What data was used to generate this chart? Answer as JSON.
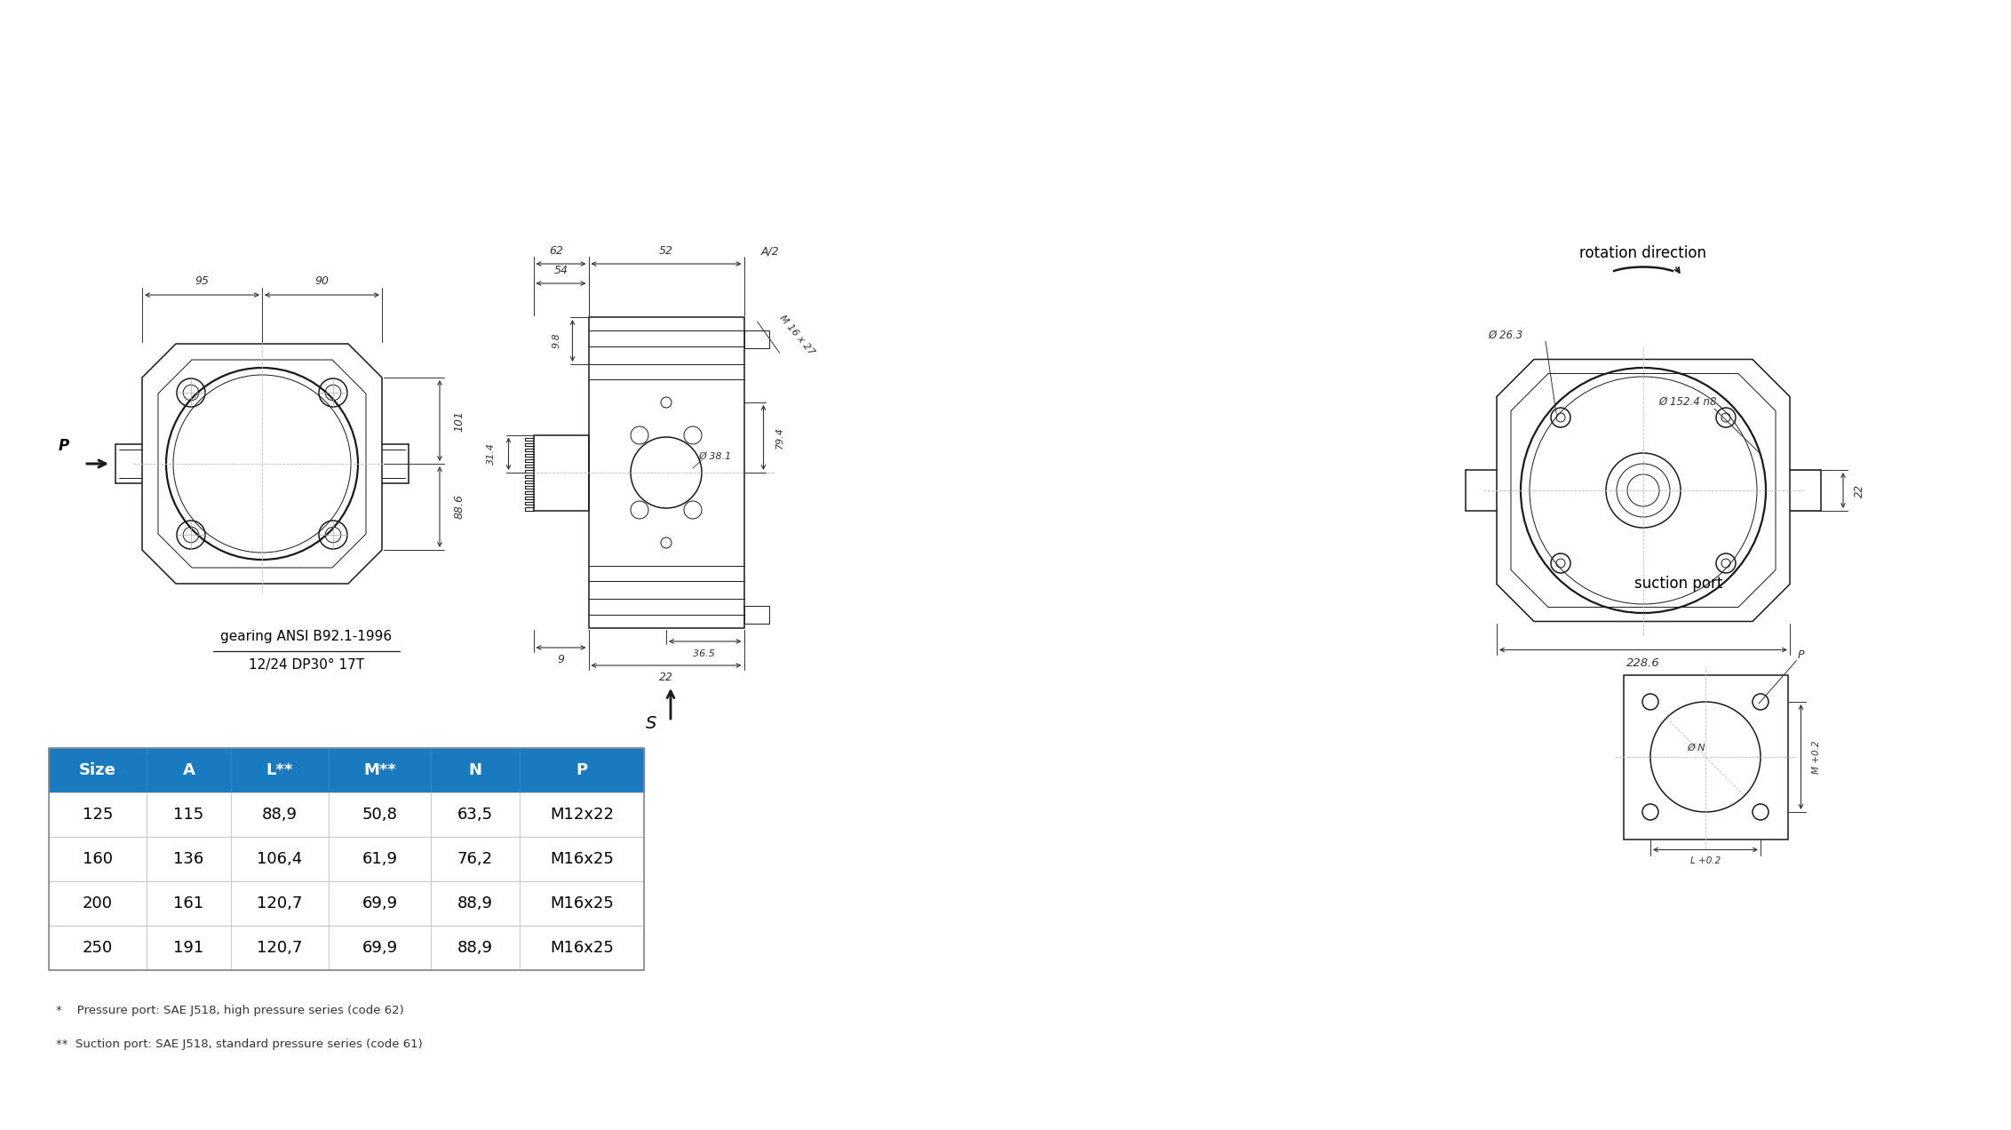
{
  "bg_color": "#ffffff",
  "line_color": "#1a1a1a",
  "dim_color": "#333333",
  "blue_header": "#1a7abf",
  "table_headers": [
    "Size",
    "A",
    "L**",
    "M**",
    "N",
    "P"
  ],
  "table_rows": [
    [
      "125",
      "115",
      "88,9",
      "50,8",
      "63,5",
      "M12x22"
    ],
    [
      "160",
      "136",
      "106,4",
      "61,9",
      "76,2",
      "M16x25"
    ],
    [
      "200",
      "161",
      "120,7",
      "69,9",
      "88,9",
      "M16x25"
    ],
    [
      "250",
      "191",
      "120,7",
      "69,9",
      "88,9",
      "M16x25"
    ]
  ],
  "note1": "*    Pressure port: SAE J518, high pressure series (code 62)",
  "note2": "**  Suction port: SAE J518, standard pressure series (code 61)",
  "gearing_line1": "gearing ANSI B92.1-1996",
  "gearing_line2": "12/24 DP30° 17T",
  "rotation_label": "rotation direction",
  "suction_label": "suction port"
}
